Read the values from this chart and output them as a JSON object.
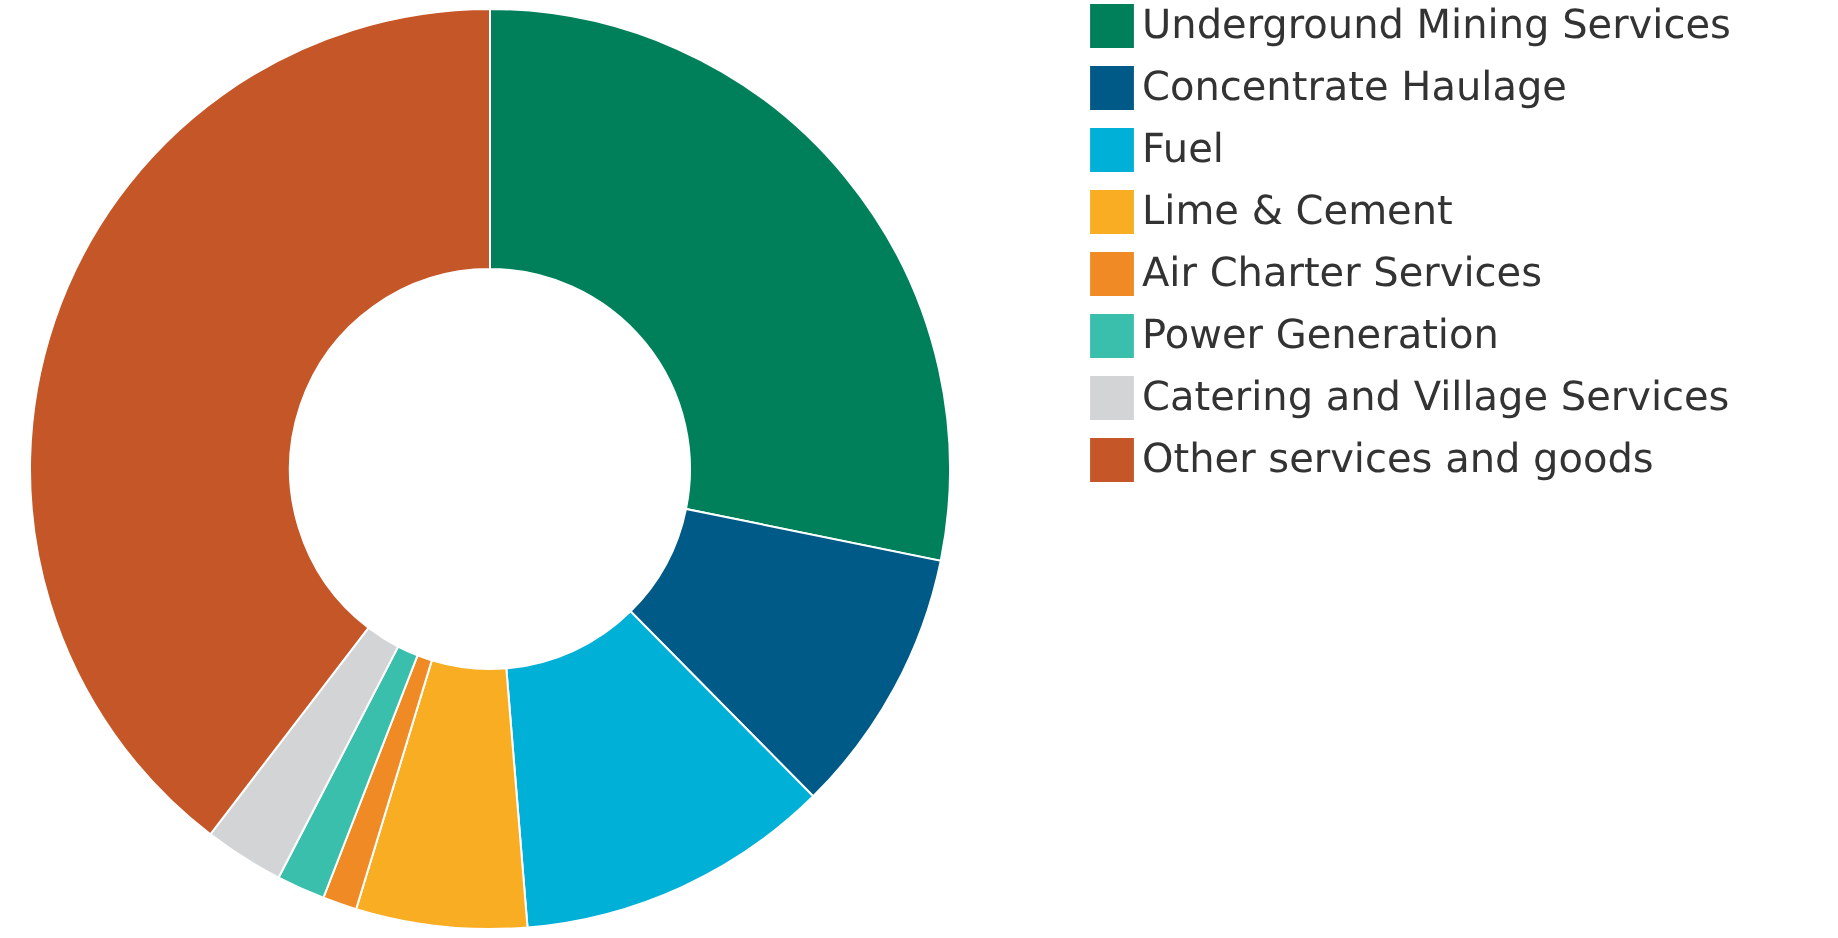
{
  "chart_data": {
    "type": "donut",
    "categories": [
      "Underground Mining Services",
      "Concentrate Haulage",
      "Fuel",
      "Lime & Cement",
      "Air Charter Services",
      "Power Generation",
      "Catering and Village Services",
      "Other services and goods"
    ],
    "values": [
      28.2,
      9.4,
      11.1,
      6,
      1.2,
      1.7,
      2.8,
      39.6
    ],
    "colors": [
      "#00805a",
      "#005a87",
      "#00b0d6",
      "#f9ad22",
      "#f08a24",
      "#3bbfad",
      "#d3d4d6",
      "#c45628"
    ],
    "legend": "right"
  }
}
